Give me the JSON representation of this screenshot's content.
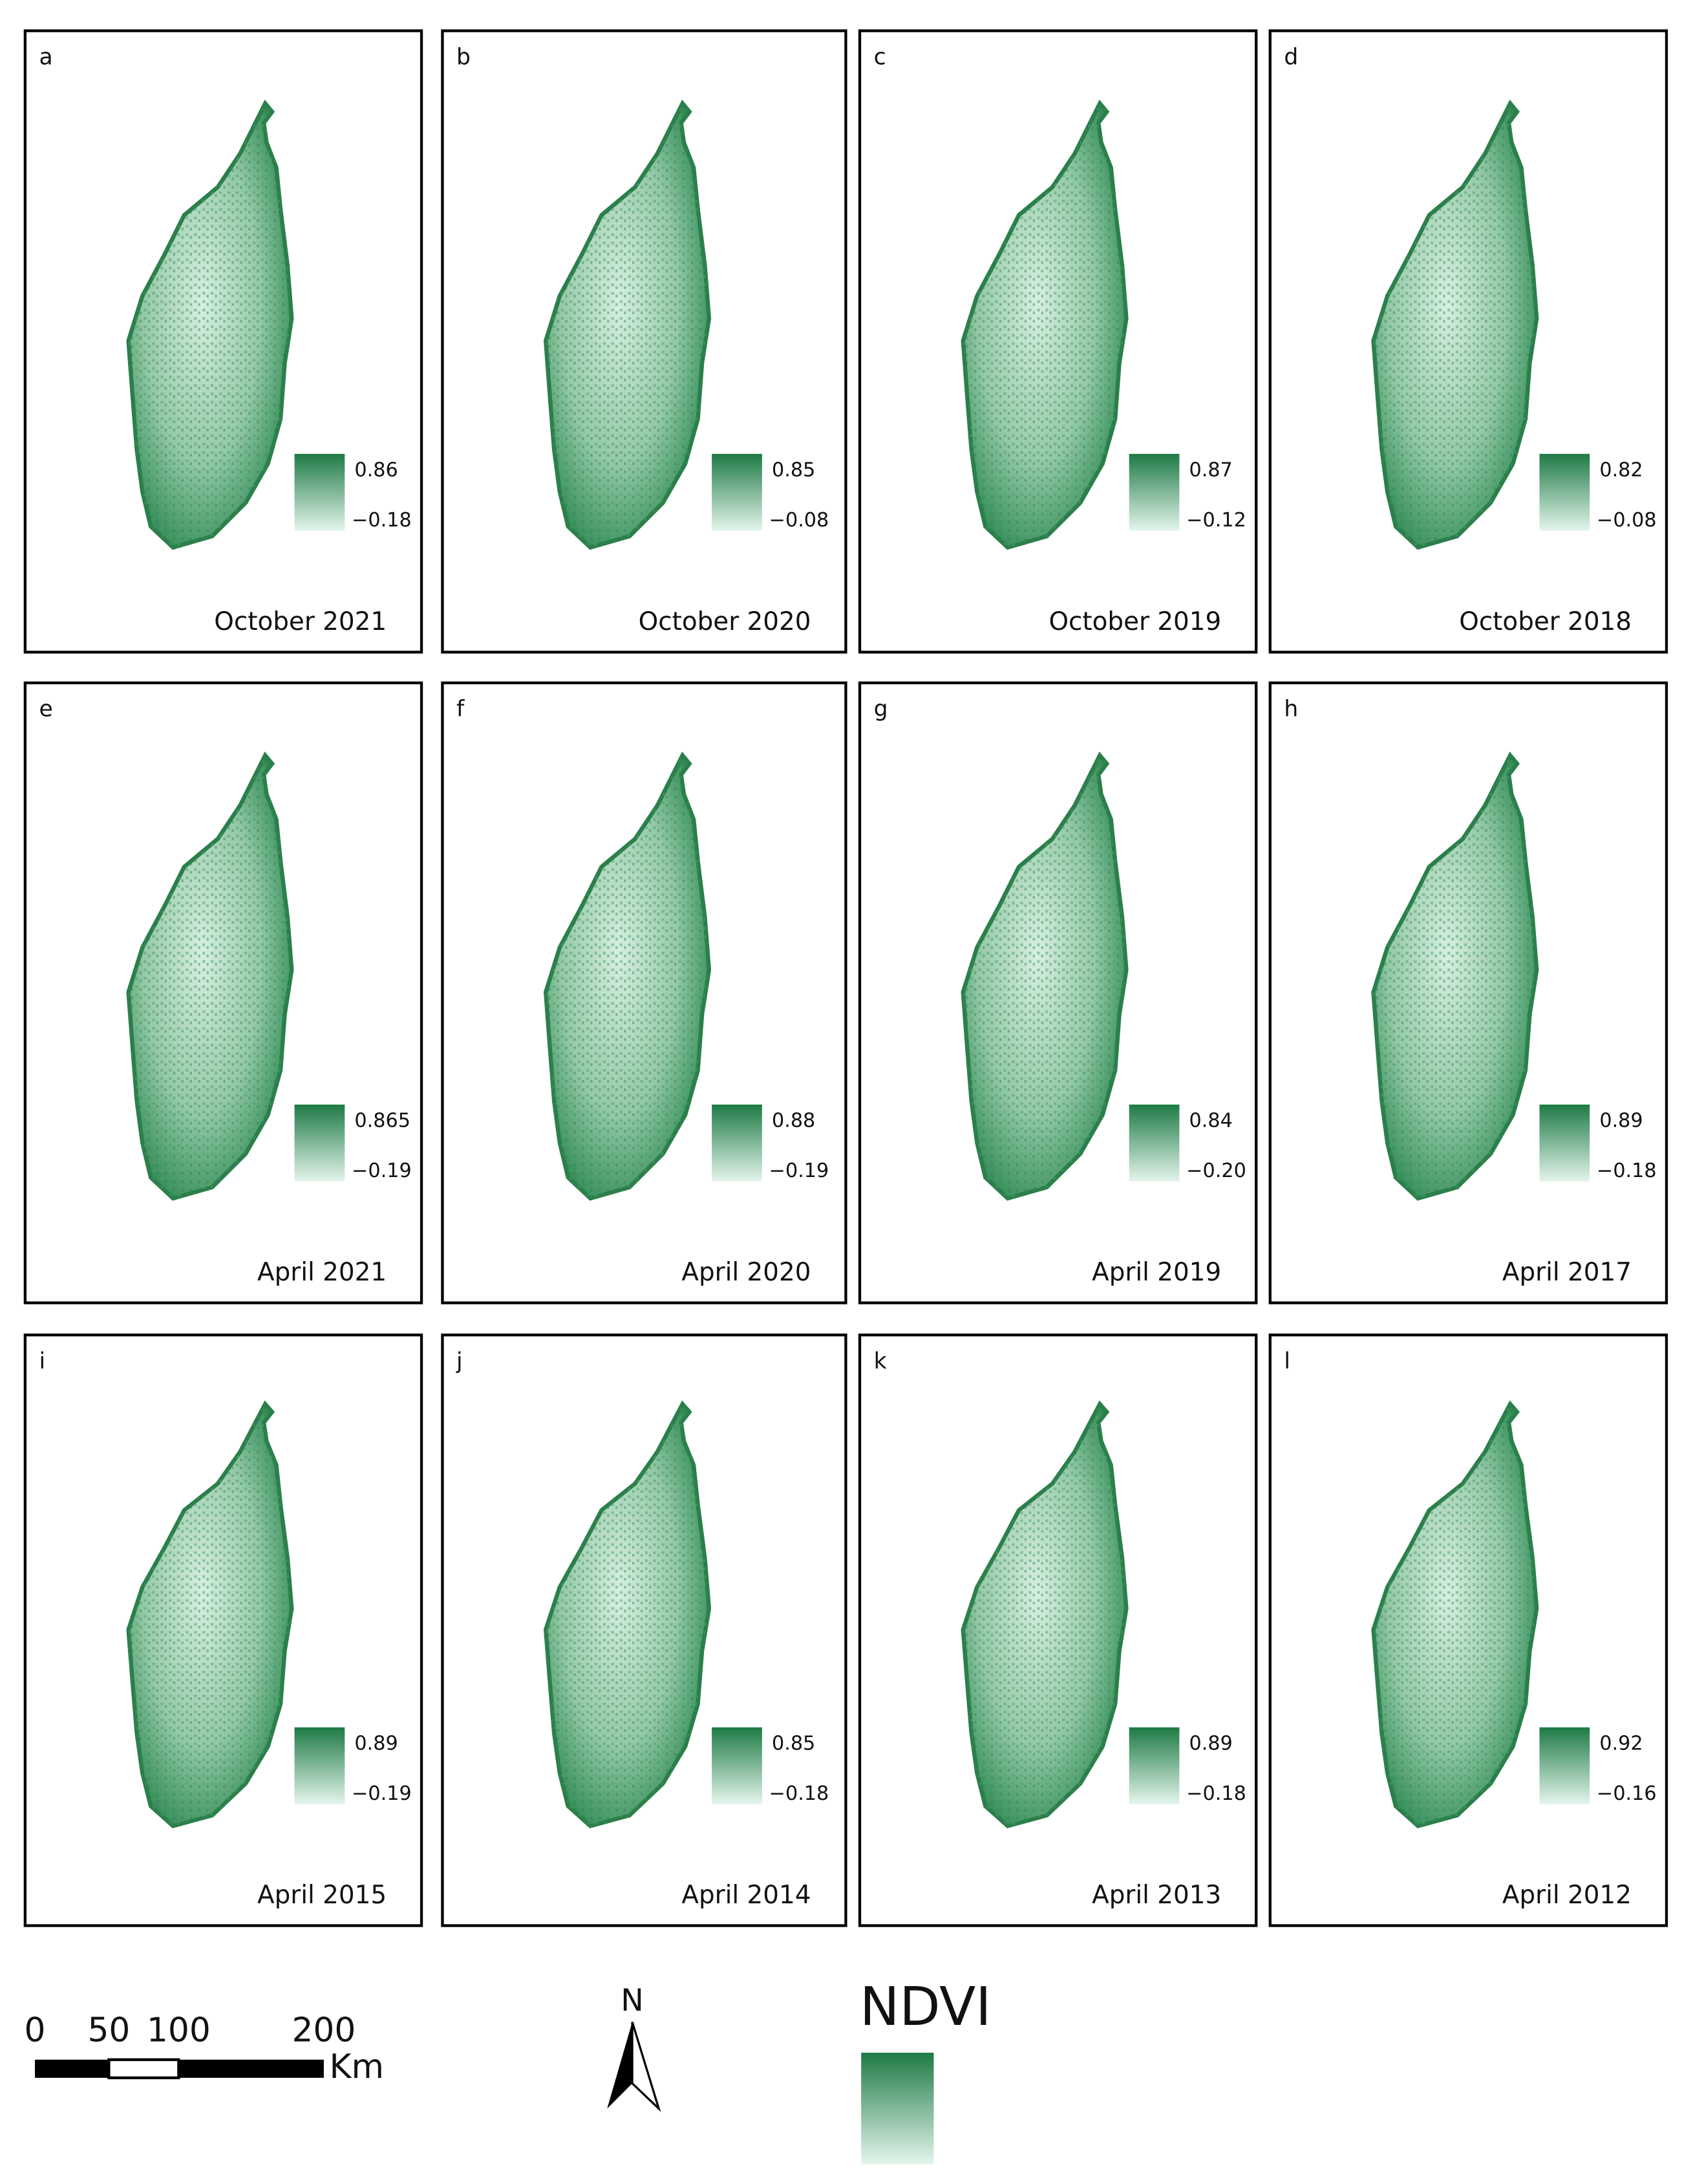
{
  "panels": [
    {
      "letter": "a",
      "max": "0.86",
      "min": "−0.18",
      "caption": "October 2021"
    },
    {
      "letter": "b",
      "max": "0.85",
      "min": "−0.08",
      "caption": "October 2020"
    },
    {
      "letter": "c",
      "max": "0.87",
      "min": "−0.12",
      "caption": "October 2019"
    },
    {
      "letter": "d",
      "max": "0.82",
      "min": "−0.08",
      "caption": "October 2018"
    },
    {
      "letter": "e",
      "max": "0.865",
      "min": "−0.19",
      "caption": "April 2021"
    },
    {
      "letter": "f",
      "max": "0.88",
      "min": "−0.19",
      "caption": "April 2020"
    },
    {
      "letter": "g",
      "max": "0.84",
      "min": "−0.20",
      "caption": "April 2019"
    },
    {
      "letter": "h",
      "max": "0.89",
      "min": "−0.18",
      "caption": "April 2017"
    },
    {
      "letter": "i",
      "max": "0.89",
      "min": "−0.19",
      "caption": "April 2015"
    },
    {
      "letter": "j",
      "max": "0.85",
      "min": "−0.18",
      "caption": "April 2014"
    },
    {
      "letter": "k",
      "max": "0.89",
      "min": "−0.18",
      "caption": "April 2013"
    },
    {
      "letter": "l",
      "max": "0.92",
      "min": "−0.16",
      "caption": "April 2012"
    }
  ],
  "scale_bar": {
    "labels": [
      "0",
      "50",
      "100",
      "200"
    ],
    "unit": "Km"
  },
  "north": "N",
  "legend": {
    "title": "NDVI"
  }
}
